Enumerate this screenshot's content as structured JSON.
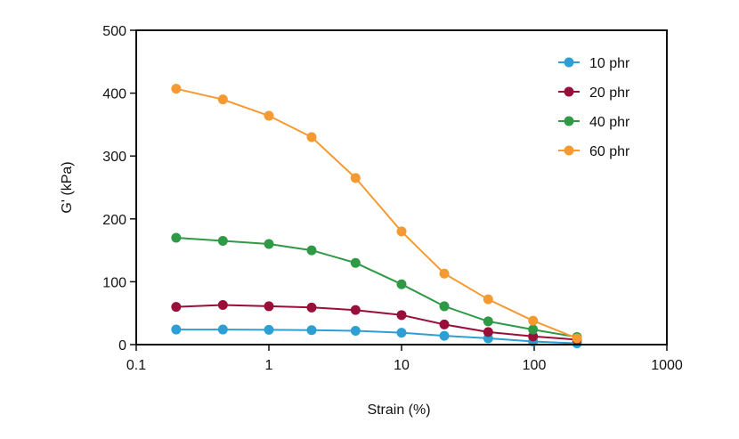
{
  "chart_data": {
    "type": "line",
    "title": "",
    "xlabel": "Strain (%)",
    "ylabel": "G' (kPa)",
    "x_scale": "log",
    "xlim": [
      0.1,
      1000
    ],
    "ylim": [
      0,
      500
    ],
    "x_tick_labels": [
      "0.1",
      "1",
      "10",
      "100",
      "1000"
    ],
    "y_tick_labels": [
      "0",
      "100",
      "200",
      "300",
      "400",
      "500"
    ],
    "grid": false,
    "legend_position": "top-right",
    "x": [
      0.2,
      0.45,
      1,
      2.1,
      4.5,
      10,
      21,
      45,
      98,
      210
    ],
    "series": [
      {
        "name": "10 phr",
        "color": "#2e9fd4",
        "values": [
          24,
          24,
          23.5,
          23,
          22,
          19,
          14,
          10,
          5,
          2
        ]
      },
      {
        "name": "20 phr",
        "color": "#9a0f3a",
        "values": [
          60,
          63,
          61,
          59,
          55,
          47,
          32,
          20,
          13,
          8
        ]
      },
      {
        "name": "40 phr",
        "color": "#2f9a45",
        "values": [
          170,
          165,
          160,
          150,
          130,
          96,
          61,
          37,
          24,
          12
        ]
      },
      {
        "name": "60 phr",
        "color": "#f59a32",
        "values": [
          407,
          390,
          364,
          330,
          265,
          180,
          113,
          72,
          38,
          10
        ]
      }
    ]
  }
}
